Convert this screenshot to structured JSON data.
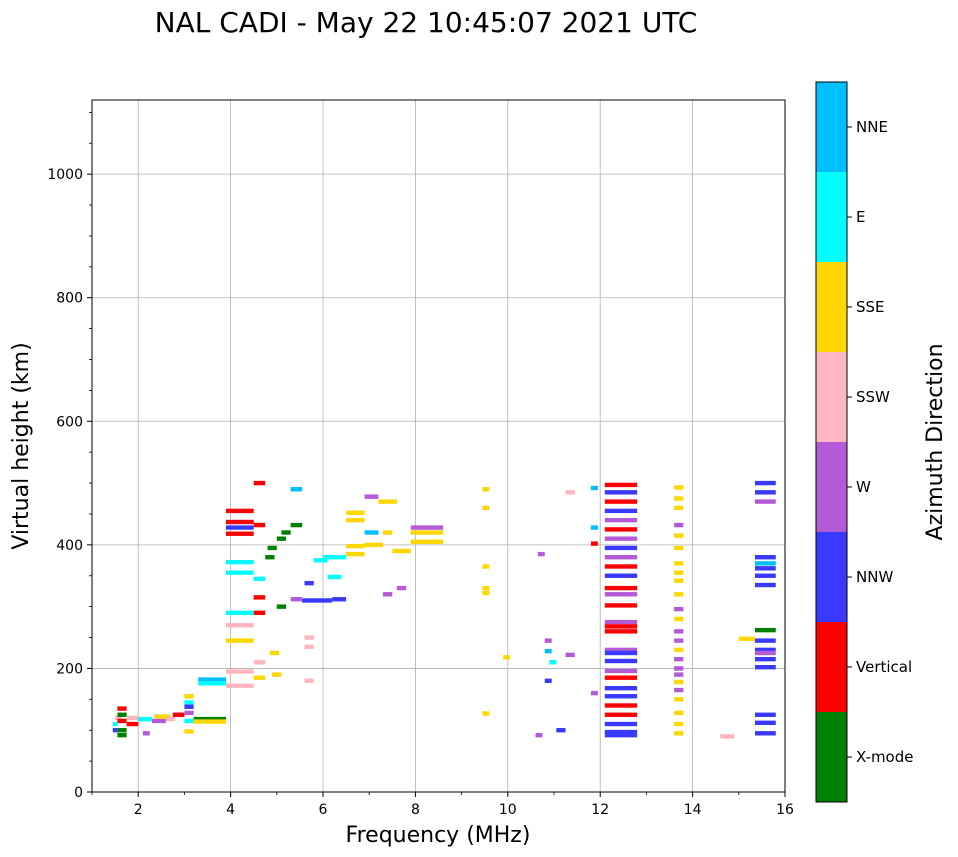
{
  "chart_data": {
    "type": "scatter",
    "title": "NAL CADI - May 22 10:45:07 2021 UTC",
    "xlabel": "Frequency (MHz)",
    "ylabel": "Virtual height (km)",
    "xlim": [
      1,
      16
    ],
    "ylim": [
      0,
      1120
    ],
    "xticks": [
      2,
      4,
      6,
      8,
      10,
      12,
      14,
      16
    ],
    "yticks": [
      0,
      200,
      400,
      600,
      800,
      1000
    ],
    "grid": true,
    "colorbar": {
      "label": "Azimuth Direction",
      "categories": [
        "X-mode",
        "Vertical",
        "NNW",
        "W",
        "SSW",
        "SSE",
        "E",
        "NNE"
      ],
      "colors": {
        "X-mode": "#008000",
        "Vertical": "#ff0000",
        "NNW": "#3a3aff",
        "W": "#b35ad6",
        "SSW": "#ffb6c1",
        "SSE": "#ffd700",
        "E": "#00ffff",
        "NNE": "#00bfff"
      }
    },
    "points": [
      {
        "f": 1.45,
        "f2": 1.55,
        "h": 110,
        "dir": "E"
      },
      {
        "f": 1.45,
        "f2": 1.55,
        "h": 100,
        "dir": "NNW"
      },
      {
        "f": 1.5,
        "f2": 1.65,
        "h": 120,
        "dir": "SSW"
      },
      {
        "f": 1.55,
        "f2": 1.75,
        "h": 135,
        "dir": "Vertical"
      },
      {
        "f": 1.55,
        "f2": 1.75,
        "h": 125,
        "dir": "X-mode"
      },
      {
        "f": 1.55,
        "f2": 1.75,
        "h": 115,
        "dir": "Vertical"
      },
      {
        "f": 1.55,
        "f2": 1.75,
        "h": 100,
        "dir": "X-mode"
      },
      {
        "f": 1.55,
        "f2": 1.75,
        "h": 92,
        "dir": "X-mode"
      },
      {
        "f": 1.75,
        "f2": 2.0,
        "h": 110,
        "dir": "Vertical"
      },
      {
        "f": 1.75,
        "f2": 2.0,
        "h": 120,
        "dir": "SSW"
      },
      {
        "f": 2.0,
        "f2": 2.3,
        "h": 118,
        "dir": "E"
      },
      {
        "f": 2.1,
        "f2": 2.25,
        "h": 95,
        "dir": "W"
      },
      {
        "f": 2.3,
        "f2": 2.6,
        "h": 115,
        "dir": "W"
      },
      {
        "f": 2.35,
        "f2": 2.7,
        "h": 122,
        "dir": "SSE"
      },
      {
        "f": 2.6,
        "f2": 2.8,
        "h": 118,
        "dir": "SSW"
      },
      {
        "f": 2.75,
        "f2": 3.0,
        "h": 125,
        "dir": "Vertical"
      },
      {
        "f": 3.0,
        "f2": 3.2,
        "h": 155,
        "dir": "SSE"
      },
      {
        "f": 3.0,
        "f2": 3.2,
        "h": 145,
        "dir": "E"
      },
      {
        "f": 3.0,
        "f2": 3.2,
        "h": 138,
        "dir": "NNW"
      },
      {
        "f": 3.0,
        "f2": 3.2,
        "h": 128,
        "dir": "W"
      },
      {
        "f": 3.0,
        "f2": 3.2,
        "h": 115,
        "dir": "E"
      },
      {
        "f": 3.0,
        "f2": 3.2,
        "h": 98,
        "dir": "SSE"
      },
      {
        "f": 3.2,
        "f2": 3.9,
        "h": 118,
        "dir": "X-mode"
      },
      {
        "f": 3.2,
        "f2": 3.9,
        "h": 114,
        "dir": "SSE"
      },
      {
        "f": 3.3,
        "f2": 3.9,
        "h": 182,
        "dir": "NNE"
      },
      {
        "f": 3.3,
        "f2": 3.9,
        "h": 176,
        "dir": "E"
      },
      {
        "f": 3.9,
        "f2": 4.5,
        "h": 195,
        "dir": "SSW"
      },
      {
        "f": 3.9,
        "f2": 4.5,
        "h": 172,
        "dir": "SSW"
      },
      {
        "f": 3.9,
        "f2": 4.5,
        "h": 245,
        "dir": "SSE"
      },
      {
        "f": 3.9,
        "f2": 4.5,
        "h": 270,
        "dir": "SSW"
      },
      {
        "f": 3.9,
        "f2": 4.5,
        "h": 290,
        "dir": "E"
      },
      {
        "f": 3.9,
        "f2": 4.5,
        "h": 355,
        "dir": "E"
      },
      {
        "f": 3.9,
        "f2": 4.5,
        "h": 372,
        "dir": "E"
      },
      {
        "f": 3.9,
        "f2": 4.5,
        "h": 418,
        "dir": "Vertical"
      },
      {
        "f": 3.9,
        "f2": 4.5,
        "h": 428,
        "dir": "NNW"
      },
      {
        "f": 3.9,
        "f2": 4.5,
        "h": 437,
        "dir": "Vertical"
      },
      {
        "f": 3.9,
        "f2": 4.5,
        "h": 455,
        "dir": "Vertical"
      },
      {
        "f": 4.5,
        "f2": 4.75,
        "h": 500,
        "dir": "Vertical"
      },
      {
        "f": 4.5,
        "f2": 4.75,
        "h": 432,
        "dir": "Vertical"
      },
      {
        "f": 4.5,
        "f2": 4.75,
        "h": 345,
        "dir": "E"
      },
      {
        "f": 4.5,
        "f2": 4.75,
        "h": 315,
        "dir": "Vertical"
      },
      {
        "f": 4.5,
        "f2": 4.75,
        "h": 290,
        "dir": "Vertical"
      },
      {
        "f": 4.5,
        "f2": 4.75,
        "h": 210,
        "dir": "SSW"
      },
      {
        "f": 4.5,
        "f2": 4.75,
        "h": 185,
        "dir": "SSE"
      },
      {
        "f": 4.75,
        "f2": 4.95,
        "h": 380,
        "dir": "X-mode"
      },
      {
        "f": 4.8,
        "f2": 5.0,
        "h": 395,
        "dir": "X-mode"
      },
      {
        "f": 4.85,
        "f2": 5.05,
        "h": 225,
        "dir": "SSE"
      },
      {
        "f": 4.9,
        "f2": 5.1,
        "h": 190,
        "dir": "SSE"
      },
      {
        "f": 5.0,
        "f2": 5.2,
        "h": 410,
        "dir": "X-mode"
      },
      {
        "f": 5.0,
        "f2": 5.2,
        "h": 300,
        "dir": "X-mode"
      },
      {
        "f": 5.1,
        "f2": 5.3,
        "h": 420,
        "dir": "X-mode"
      },
      {
        "f": 5.3,
        "f2": 5.55,
        "h": 432,
        "dir": "X-mode"
      },
      {
        "f": 5.3,
        "f2": 5.55,
        "h": 490,
        "dir": "NNE"
      },
      {
        "f": 5.3,
        "f2": 5.55,
        "h": 312,
        "dir": "W"
      },
      {
        "f": 5.55,
        "f2": 6.2,
        "h": 310,
        "dir": "NNW"
      },
      {
        "f": 5.6,
        "f2": 5.8,
        "h": 338,
        "dir": "NNW"
      },
      {
        "f": 5.6,
        "f2": 5.8,
        "h": 250,
        "dir": "SSW"
      },
      {
        "f": 5.6,
        "f2": 5.8,
        "h": 235,
        "dir": "SSW"
      },
      {
        "f": 5.6,
        "f2": 5.8,
        "h": 180,
        "dir": "SSW"
      },
      {
        "f": 5.8,
        "f2": 6.1,
        "h": 375,
        "dir": "E"
      },
      {
        "f": 6.0,
        "f2": 6.5,
        "h": 380,
        "dir": "E"
      },
      {
        "f": 6.1,
        "f2": 6.4,
        "h": 348,
        "dir": "E"
      },
      {
        "f": 6.2,
        "f2": 6.5,
        "h": 312,
        "dir": "NNW"
      },
      {
        "f": 6.5,
        "f2": 6.9,
        "h": 398,
        "dir": "SSE"
      },
      {
        "f": 6.5,
        "f2": 6.9,
        "h": 385,
        "dir": "SSE"
      },
      {
        "f": 6.5,
        "f2": 6.9,
        "h": 440,
        "dir": "SSE"
      },
      {
        "f": 6.5,
        "f2": 6.9,
        "h": 452,
        "dir": "SSE"
      },
      {
        "f": 6.9,
        "f2": 7.2,
        "h": 478,
        "dir": "W"
      },
      {
        "f": 6.9,
        "f2": 7.2,
        "h": 420,
        "dir": "NNE"
      },
      {
        "f": 6.9,
        "f2": 7.3,
        "h": 400,
        "dir": "SSE"
      },
      {
        "f": 7.2,
        "f2": 7.6,
        "h": 470,
        "dir": "SSE"
      },
      {
        "f": 7.3,
        "f2": 7.5,
        "h": 420,
        "dir": "SSE"
      },
      {
        "f": 7.5,
        "f2": 7.9,
        "h": 390,
        "dir": "SSE"
      },
      {
        "f": 7.9,
        "f2": 8.6,
        "h": 420,
        "dir": "SSE"
      },
      {
        "f": 7.9,
        "f2": 8.6,
        "h": 428,
        "dir": "W"
      },
      {
        "f": 7.9,
        "f2": 8.6,
        "h": 405,
        "dir": "SSE"
      },
      {
        "f": 7.3,
        "f2": 7.5,
        "h": 320,
        "dir": "W"
      },
      {
        "f": 7.6,
        "f2": 7.8,
        "h": 330,
        "dir": "W"
      },
      {
        "f": 9.45,
        "f2": 9.6,
        "h": 490,
        "dir": "SSE"
      },
      {
        "f": 9.45,
        "f2": 9.6,
        "h": 460,
        "dir": "SSE"
      },
      {
        "f": 9.45,
        "f2": 9.6,
        "h": 365,
        "dir": "SSE"
      },
      {
        "f": 9.45,
        "f2": 9.6,
        "h": 330,
        "dir": "SSE"
      },
      {
        "f": 9.45,
        "f2": 9.6,
        "h": 322,
        "dir": "SSE"
      },
      {
        "f": 9.45,
        "f2": 9.6,
        "h": 127,
        "dir": "SSE"
      },
      {
        "f": 9.9,
        "f2": 10.05,
        "h": 218,
        "dir": "SSE"
      },
      {
        "f": 10.6,
        "f2": 10.75,
        "h": 92,
        "dir": "W"
      },
      {
        "f": 10.65,
        "f2": 10.8,
        "h": 385,
        "dir": "W"
      },
      {
        "f": 10.8,
        "f2": 10.95,
        "h": 245,
        "dir": "W"
      },
      {
        "f": 10.8,
        "f2": 10.95,
        "h": 228,
        "dir": "NNE"
      },
      {
        "f": 10.8,
        "f2": 10.95,
        "h": 180,
        "dir": "NNW"
      },
      {
        "f": 10.9,
        "f2": 11.05,
        "h": 210,
        "dir": "E"
      },
      {
        "f": 11.05,
        "f2": 11.25,
        "h": 100,
        "dir": "NNW"
      },
      {
        "f": 11.25,
        "f2": 11.45,
        "h": 222,
        "dir": "W"
      },
      {
        "f": 11.25,
        "f2": 11.45,
        "h": 485,
        "dir": "SSW"
      },
      {
        "f": 11.8,
        "f2": 11.95,
        "h": 492,
        "dir": "NNE"
      },
      {
        "f": 11.8,
        "f2": 11.95,
        "h": 428,
        "dir": "NNE"
      },
      {
        "f": 11.8,
        "f2": 11.95,
        "h": 402,
        "dir": "Vertical"
      },
      {
        "f": 11.8,
        "f2": 11.95,
        "h": 160,
        "dir": "W"
      },
      {
        "f": 12.1,
        "f2": 12.8,
        "h": 497,
        "dir": "Vertical"
      },
      {
        "f": 12.1,
        "f2": 12.8,
        "h": 485,
        "dir": "NNW"
      },
      {
        "f": 12.1,
        "f2": 12.8,
        "h": 470,
        "dir": "Vertical"
      },
      {
        "f": 12.1,
        "f2": 12.8,
        "h": 455,
        "dir": "NNW"
      },
      {
        "f": 12.1,
        "f2": 12.8,
        "h": 440,
        "dir": "W"
      },
      {
        "f": 12.1,
        "f2": 12.8,
        "h": 425,
        "dir": "Vertical"
      },
      {
        "f": 12.1,
        "f2": 12.8,
        "h": 410,
        "dir": "W"
      },
      {
        "f": 12.1,
        "f2": 12.8,
        "h": 395,
        "dir": "NNW"
      },
      {
        "f": 12.1,
        "f2": 12.8,
        "h": 380,
        "dir": "W"
      },
      {
        "f": 12.1,
        "f2": 12.8,
        "h": 365,
        "dir": "Vertical"
      },
      {
        "f": 12.1,
        "f2": 12.8,
        "h": 350,
        "dir": "NNW"
      },
      {
        "f": 12.1,
        "f2": 12.8,
        "h": 330,
        "dir": "Vertical"
      },
      {
        "f": 12.1,
        "f2": 12.8,
        "h": 320,
        "dir": "W"
      },
      {
        "f": 12.1,
        "f2": 12.8,
        "h": 302,
        "dir": "Vertical"
      },
      {
        "f": 12.1,
        "f2": 12.8,
        "h": 275,
        "dir": "W"
      },
      {
        "f": 12.1,
        "f2": 12.8,
        "h": 268,
        "dir": "Vertical"
      },
      {
        "f": 12.1,
        "f2": 12.8,
        "h": 260,
        "dir": "Vertical"
      },
      {
        "f": 12.1,
        "f2": 12.8,
        "h": 230,
        "dir": "W"
      },
      {
        "f": 12.1,
        "f2": 12.8,
        "h": 225,
        "dir": "NNW"
      },
      {
        "f": 12.1,
        "f2": 12.8,
        "h": 212,
        "dir": "NNW"
      },
      {
        "f": 12.1,
        "f2": 12.8,
        "h": 196,
        "dir": "W"
      },
      {
        "f": 12.1,
        "f2": 12.8,
        "h": 185,
        "dir": "Vertical"
      },
      {
        "f": 12.1,
        "f2": 12.8,
        "h": 168,
        "dir": "NNW"
      },
      {
        "f": 12.1,
        "f2": 12.8,
        "h": 155,
        "dir": "NNW"
      },
      {
        "f": 12.1,
        "f2": 12.8,
        "h": 140,
        "dir": "Vertical"
      },
      {
        "f": 12.1,
        "f2": 12.8,
        "h": 125,
        "dir": "Vertical"
      },
      {
        "f": 12.1,
        "f2": 12.8,
        "h": 110,
        "dir": "NNW"
      },
      {
        "f": 12.1,
        "f2": 12.8,
        "h": 97,
        "dir": "NNW"
      },
      {
        "f": 12.1,
        "f2": 12.8,
        "h": 92,
        "dir": "NNW"
      },
      {
        "f": 13.6,
        "f2": 13.8,
        "h": 493,
        "dir": "SSE"
      },
      {
        "f": 13.6,
        "f2": 13.8,
        "h": 475,
        "dir": "SSE"
      },
      {
        "f": 13.6,
        "f2": 13.8,
        "h": 460,
        "dir": "SSE"
      },
      {
        "f": 13.6,
        "f2": 13.8,
        "h": 432,
        "dir": "W"
      },
      {
        "f": 13.6,
        "f2": 13.8,
        "h": 415,
        "dir": "SSE"
      },
      {
        "f": 13.6,
        "f2": 13.8,
        "h": 395,
        "dir": "SSE"
      },
      {
        "f": 13.6,
        "f2": 13.8,
        "h": 370,
        "dir": "SSE"
      },
      {
        "f": 13.6,
        "f2": 13.8,
        "h": 355,
        "dir": "SSE"
      },
      {
        "f": 13.6,
        "f2": 13.8,
        "h": 342,
        "dir": "SSE"
      },
      {
        "f": 13.6,
        "f2": 13.8,
        "h": 320,
        "dir": "SSE"
      },
      {
        "f": 13.6,
        "f2": 13.8,
        "h": 296,
        "dir": "W"
      },
      {
        "f": 13.6,
        "f2": 13.8,
        "h": 280,
        "dir": "SSE"
      },
      {
        "f": 13.6,
        "f2": 13.8,
        "h": 260,
        "dir": "W"
      },
      {
        "f": 13.6,
        "f2": 13.8,
        "h": 245,
        "dir": "W"
      },
      {
        "f": 13.6,
        "f2": 13.8,
        "h": 230,
        "dir": "SSE"
      },
      {
        "f": 13.6,
        "f2": 13.8,
        "h": 215,
        "dir": "W"
      },
      {
        "f": 13.6,
        "f2": 13.8,
        "h": 200,
        "dir": "W"
      },
      {
        "f": 13.6,
        "f2": 13.8,
        "h": 190,
        "dir": "W"
      },
      {
        "f": 13.6,
        "f2": 13.8,
        "h": 178,
        "dir": "SSE"
      },
      {
        "f": 13.6,
        "f2": 13.8,
        "h": 165,
        "dir": "W"
      },
      {
        "f": 13.6,
        "f2": 13.8,
        "h": 150,
        "dir": "SSE"
      },
      {
        "f": 13.6,
        "f2": 13.8,
        "h": 128,
        "dir": "SSE"
      },
      {
        "f": 13.6,
        "f2": 13.8,
        "h": 110,
        "dir": "SSE"
      },
      {
        "f": 13.6,
        "f2": 13.8,
        "h": 95,
        "dir": "SSE"
      },
      {
        "f": 14.6,
        "f2": 14.9,
        "h": 90,
        "dir": "SSW"
      },
      {
        "f": 15.0,
        "f2": 15.35,
        "h": 248,
        "dir": "SSE"
      },
      {
        "f": 15.35,
        "f2": 15.8,
        "h": 500,
        "dir": "NNW"
      },
      {
        "f": 15.35,
        "f2": 15.8,
        "h": 485,
        "dir": "NNW"
      },
      {
        "f": 15.35,
        "f2": 15.8,
        "h": 470,
        "dir": "W"
      },
      {
        "f": 15.35,
        "f2": 15.8,
        "h": 380,
        "dir": "NNW"
      },
      {
        "f": 15.35,
        "f2": 15.8,
        "h": 370,
        "dir": "NNE"
      },
      {
        "f": 15.35,
        "f2": 15.8,
        "h": 362,
        "dir": "NNW"
      },
      {
        "f": 15.35,
        "f2": 15.8,
        "h": 350,
        "dir": "NNW"
      },
      {
        "f": 15.35,
        "f2": 15.8,
        "h": 335,
        "dir": "NNW"
      },
      {
        "f": 15.35,
        "f2": 15.8,
        "h": 262,
        "dir": "X-mode"
      },
      {
        "f": 15.35,
        "f2": 15.8,
        "h": 245,
        "dir": "NNW"
      },
      {
        "f": 15.35,
        "f2": 15.8,
        "h": 230,
        "dir": "NNW"
      },
      {
        "f": 15.35,
        "f2": 15.8,
        "h": 225,
        "dir": "W"
      },
      {
        "f": 15.35,
        "f2": 15.8,
        "h": 215,
        "dir": "NNW"
      },
      {
        "f": 15.35,
        "f2": 15.8,
        "h": 202,
        "dir": "NNW"
      },
      {
        "f": 15.35,
        "f2": 15.8,
        "h": 125,
        "dir": "NNW"
      },
      {
        "f": 15.35,
        "f2": 15.8,
        "h": 112,
        "dir": "NNW"
      },
      {
        "f": 15.35,
        "f2": 15.8,
        "h": 95,
        "dir": "NNW"
      }
    ]
  }
}
